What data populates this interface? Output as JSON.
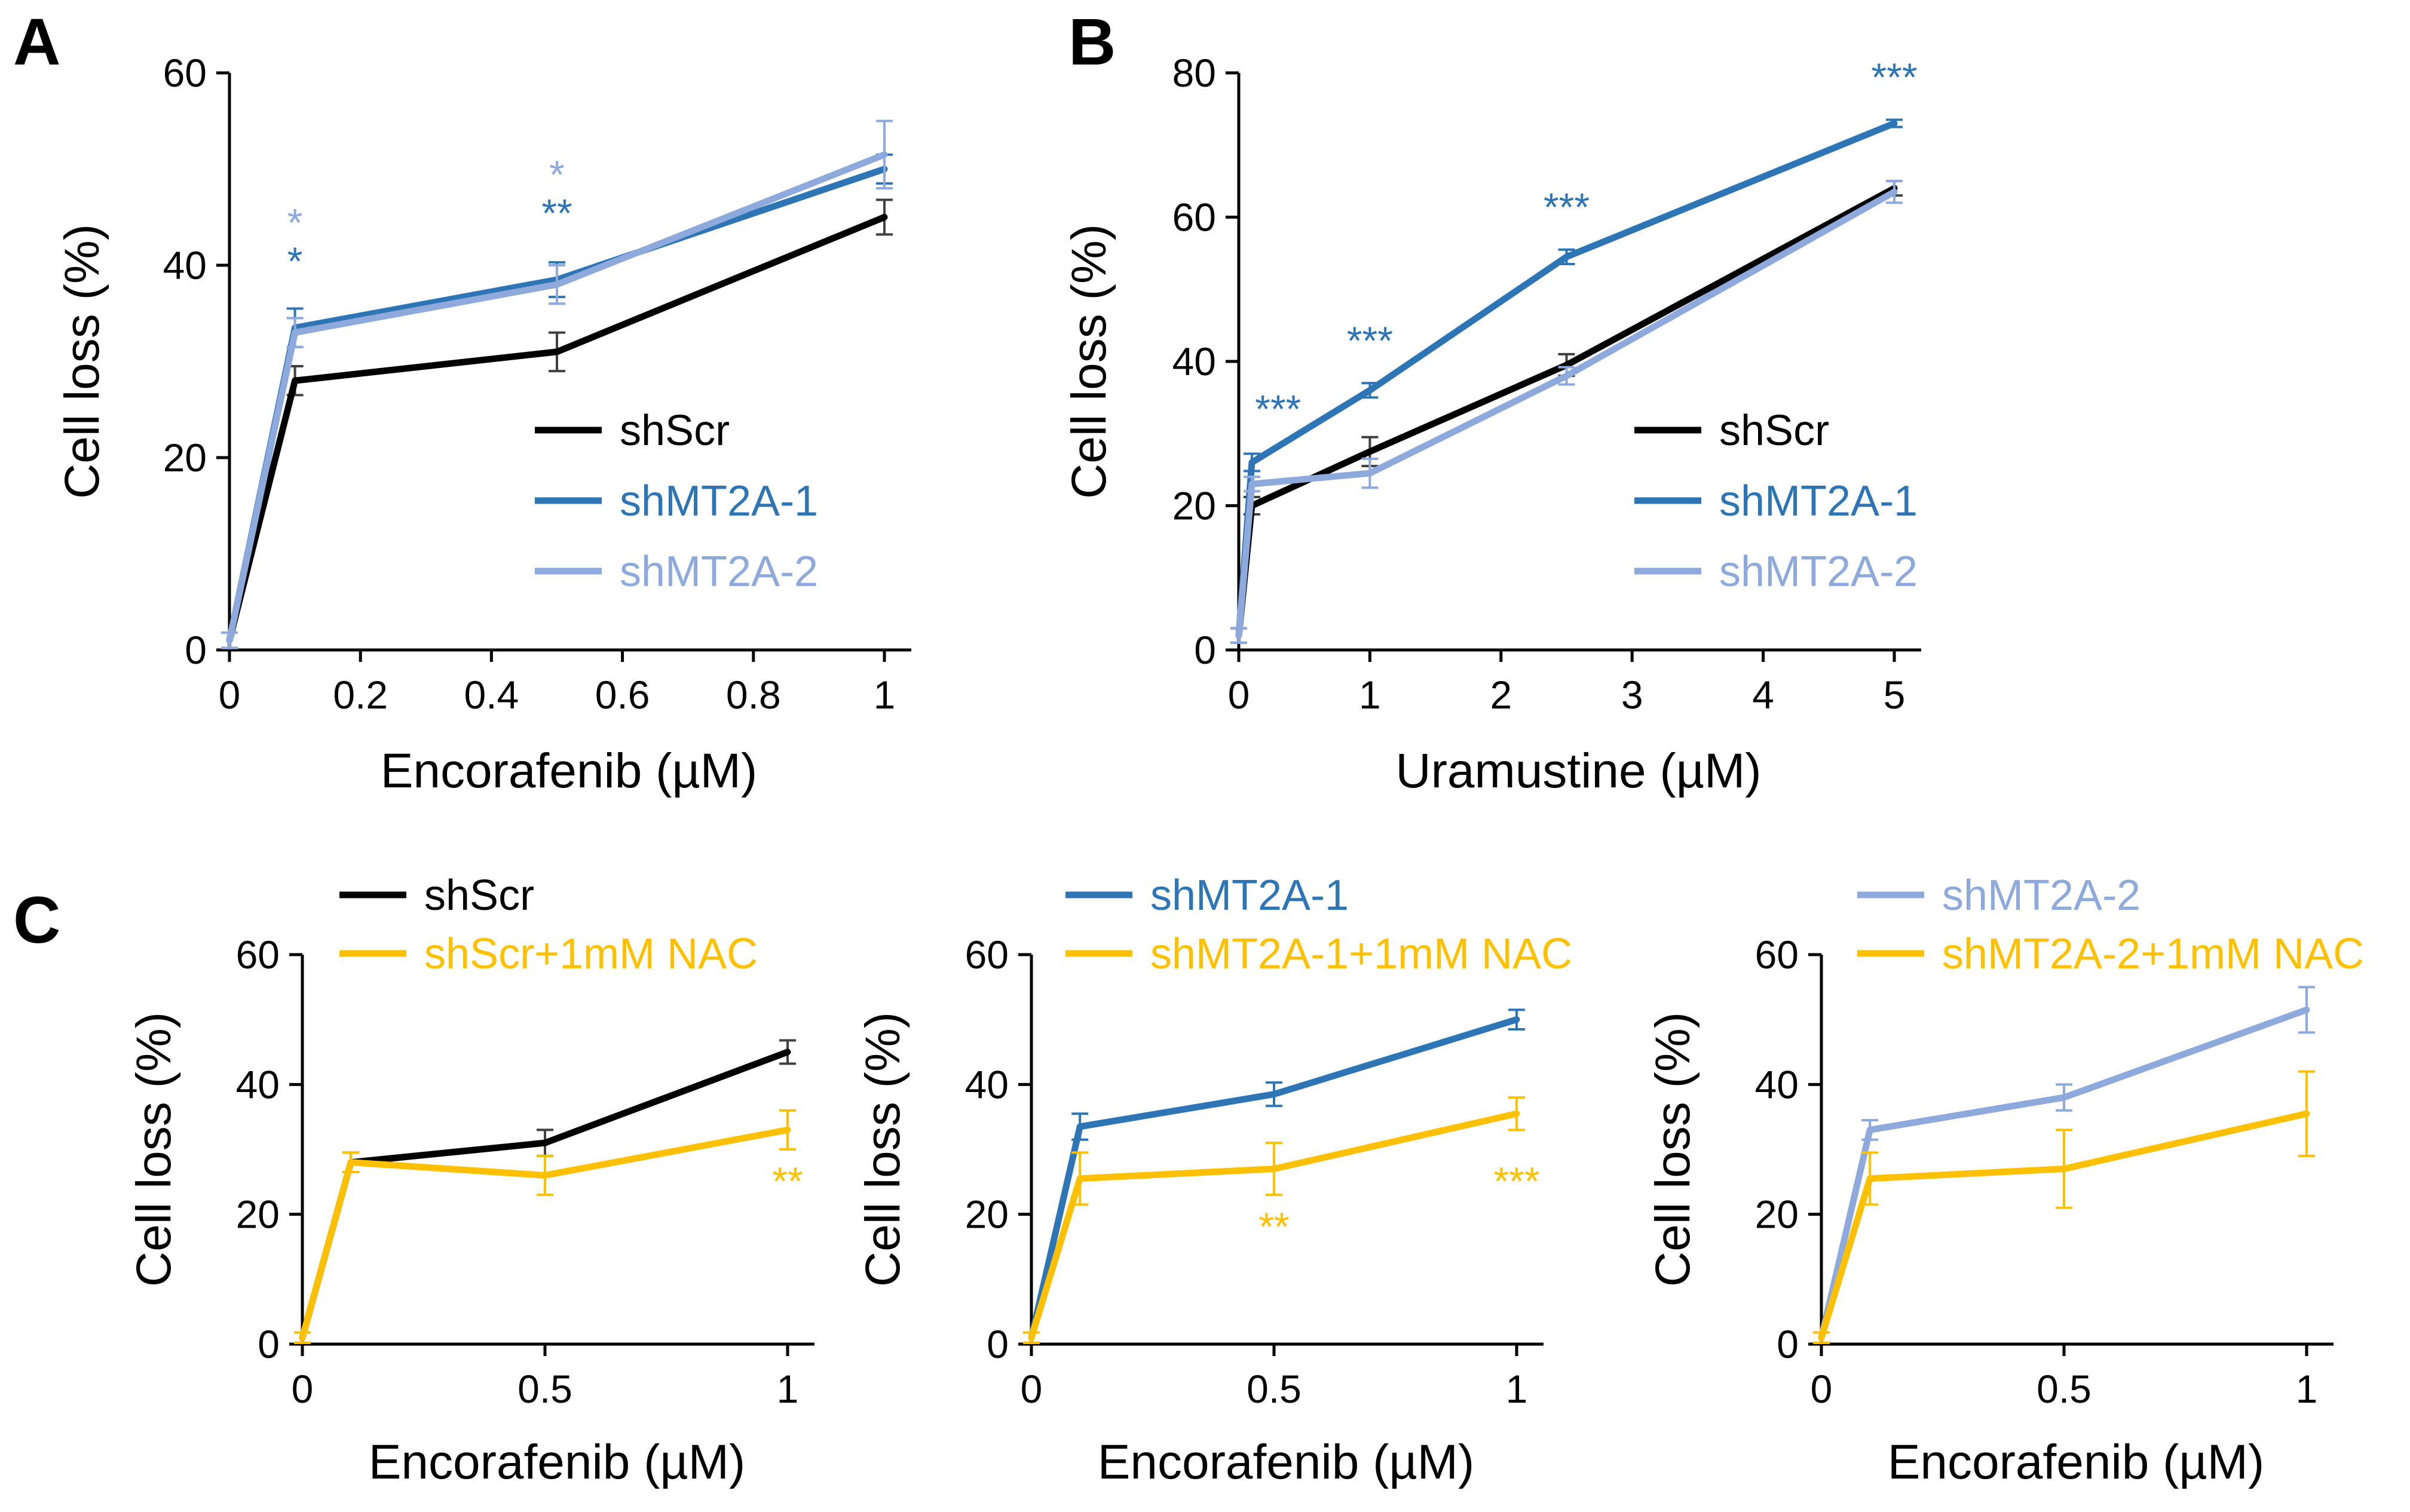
{
  "colors": {
    "black": "#000000",
    "dark_blue": "#2E75B6",
    "light_blue": "#8EA9DB",
    "gold": "#FFC000",
    "axis": "#000000",
    "err_black": "#404040"
  },
  "chart_data": [
    {
      "id": "A",
      "panel_label": "A",
      "type": "line",
      "xlabel": "Encorafenib (µM)",
      "ylabel": "Cell loss (%)",
      "xlim": [
        0,
        1
      ],
      "ylim": [
        0,
        60
      ],
      "xticks": [
        0,
        0.2,
        0.4,
        0.6,
        0.8,
        1
      ],
      "xtick_labels": [
        "0",
        "0.2",
        "0.4",
        "0.6",
        "0.8",
        "1"
      ],
      "yticks": [
        0,
        20,
        40,
        60
      ],
      "ytick_labels": [
        "0",
        "20",
        "40",
        "60"
      ],
      "x": [
        0,
        0.1,
        0.5,
        1
      ],
      "legend_position": "center-right",
      "series": [
        {
          "name": "shScr",
          "color": "#000000",
          "err_color": "#404040",
          "values": [
            1,
            28,
            31,
            45
          ],
          "errors": [
            0.8,
            1.5,
            2,
            1.8
          ]
        },
        {
          "name": "shMT2A-1",
          "color": "#2E75B6",
          "err_color": "#2E75B6",
          "values": [
            1,
            33.5,
            38.5,
            50
          ],
          "errors": [
            0.8,
            2,
            1.8,
            1.5
          ]
        },
        {
          "name": "shMT2A-2",
          "color": "#8EA9DB",
          "err_color": "#8EA9DB",
          "values": [
            1,
            33,
            38,
            51.5
          ],
          "errors": [
            0.8,
            1.5,
            2,
            3.5
          ]
        }
      ],
      "annotations": [
        {
          "text": "*",
          "x": 0.1,
          "y": 43,
          "color": "#8EA9DB"
        },
        {
          "text": "*",
          "x": 0.1,
          "y": 39,
          "color": "#2E75B6"
        },
        {
          "text": "*",
          "x": 0.5,
          "y": 48,
          "color": "#8EA9DB"
        },
        {
          "text": "**",
          "x": 0.5,
          "y": 44,
          "color": "#2E75B6"
        }
      ]
    },
    {
      "id": "B",
      "panel_label": "B",
      "type": "line",
      "xlabel": "Uramustine (µM)",
      "ylabel": "Cell loss (%)",
      "xlim": [
        0,
        5
      ],
      "ylim": [
        0,
        80
      ],
      "xticks": [
        0,
        1,
        2,
        3,
        4,
        5
      ],
      "xtick_labels": [
        "0",
        "1",
        "2",
        "3",
        "4",
        "5"
      ],
      "yticks": [
        0,
        20,
        40,
        60,
        80
      ],
      "ytick_labels": [
        "0",
        "20",
        "40",
        "60",
        "80"
      ],
      "x": [
        0,
        0.1,
        1,
        2.5,
        5
      ],
      "legend_position": "center-right",
      "series": [
        {
          "name": "shScr",
          "color": "#000000",
          "err_color": "#404040",
          "values": [
            2,
            20,
            27.5,
            39.5,
            64
          ],
          "errors": [
            1,
            1.2,
            2,
            1.5,
            1
          ]
        },
        {
          "name": "shMT2A-1",
          "color": "#2E75B6",
          "err_color": "#2E75B6",
          "values": [
            2,
            26,
            36,
            54.5,
            73
          ],
          "errors": [
            1,
            1.2,
            1,
            1,
            0.5
          ]
        },
        {
          "name": "shMT2A-2",
          "color": "#8EA9DB",
          "err_color": "#8EA9DB",
          "values": [
            2,
            23,
            24.5,
            38,
            63.5
          ],
          "errors": [
            1,
            1,
            2,
            1.2,
            1.5
          ]
        }
      ],
      "annotations": [
        {
          "text": "***",
          "x": 0.3,
          "y": 31.5,
          "color": "#2E75B6"
        },
        {
          "text": "***",
          "x": 1,
          "y": 41,
          "color": "#2E75B6"
        },
        {
          "text": "***",
          "x": 2.5,
          "y": 59.5,
          "color": "#2E75B6"
        },
        {
          "text": "***",
          "x": 5,
          "y": 77.5,
          "color": "#2E75B6"
        }
      ]
    },
    {
      "id": "C1",
      "panel_label": "C",
      "type": "line",
      "xlabel": "Encorafenib (µM)",
      "ylabel": "Cell loss (%)",
      "xlim": [
        0,
        1
      ],
      "ylim": [
        0,
        60
      ],
      "xticks": [
        0,
        0.5,
        1
      ],
      "xtick_labels": [
        "0",
        "0.5",
        "1"
      ],
      "yticks": [
        0,
        20,
        40,
        60
      ],
      "ytick_labels": [
        "0",
        "20",
        "40",
        "60"
      ],
      "x": [
        0,
        0.1,
        0.5,
        1
      ],
      "legend_position": "top",
      "series": [
        {
          "name": "shScr",
          "color": "#000000",
          "err_color": "#404040",
          "values": [
            1,
            28,
            31,
            45
          ],
          "errors": [
            0.8,
            1.5,
            2,
            1.8
          ]
        },
        {
          "name": "shScr+1mM NAC",
          "color": "#FFC000",
          "err_color": "#FFC000",
          "values": [
            1,
            28,
            26,
            33
          ],
          "errors": [
            0.8,
            1.5,
            3,
            3
          ]
        }
      ],
      "annotations": [
        {
          "text": "**",
          "x": 1,
          "y": 23,
          "color": "#FFC000"
        }
      ]
    },
    {
      "id": "C2",
      "panel_label": "",
      "type": "line",
      "xlabel": "Encorafenib (µM)",
      "ylabel": "Cell loss (%)",
      "xlim": [
        0,
        1
      ],
      "ylim": [
        0,
        60
      ],
      "xticks": [
        0,
        0.5,
        1
      ],
      "xtick_labels": [
        "0",
        "0.5",
        "1"
      ],
      "yticks": [
        0,
        20,
        40,
        60
      ],
      "ytick_labels": [
        "0",
        "20",
        "40",
        "60"
      ],
      "x": [
        0,
        0.1,
        0.5,
        1
      ],
      "legend_position": "top",
      "series": [
        {
          "name": "shMT2A-1",
          "color": "#2E75B6",
          "err_color": "#2E75B6",
          "values": [
            1,
            33.5,
            38.5,
            50
          ],
          "errors": [
            0.8,
            2,
            1.8,
            1.5
          ]
        },
        {
          "name": "shMT2A-1+1mM NAC",
          "color": "#FFC000",
          "err_color": "#FFC000",
          "values": [
            1,
            25.5,
            27,
            35.5
          ],
          "errors": [
            0.8,
            4,
            4,
            2.5
          ]
        }
      ],
      "annotations": [
        {
          "text": "**",
          "x": 0.5,
          "y": 16,
          "color": "#FFC000"
        },
        {
          "text": "***",
          "x": 1,
          "y": 23,
          "color": "#FFC000"
        }
      ]
    },
    {
      "id": "C3",
      "panel_label": "",
      "type": "line",
      "xlabel": "Encorafenib (µM)",
      "ylabel": "Cell loss (%)",
      "xlim": [
        0,
        1
      ],
      "ylim": [
        0,
        60
      ],
      "xticks": [
        0,
        0.5,
        1
      ],
      "xtick_labels": [
        "0",
        "0.5",
        "1"
      ],
      "yticks": [
        0,
        20,
        40,
        60
      ],
      "ytick_labels": [
        "0",
        "20",
        "40",
        "60"
      ],
      "x": [
        0,
        0.1,
        0.5,
        1
      ],
      "legend_position": "top",
      "series": [
        {
          "name": "shMT2A-2",
          "color": "#8EA9DB",
          "err_color": "#8EA9DB",
          "values": [
            1,
            33,
            38,
            51.5
          ],
          "errors": [
            0.8,
            1.5,
            2,
            3.5
          ]
        },
        {
          "name": "shMT2A-2+1mM NAC",
          "color": "#FFC000",
          "err_color": "#FFC000",
          "values": [
            1,
            25.5,
            27,
            35.5
          ],
          "errors": [
            0.8,
            4,
            6,
            6.5
          ]
        }
      ],
      "annotations": []
    }
  ]
}
